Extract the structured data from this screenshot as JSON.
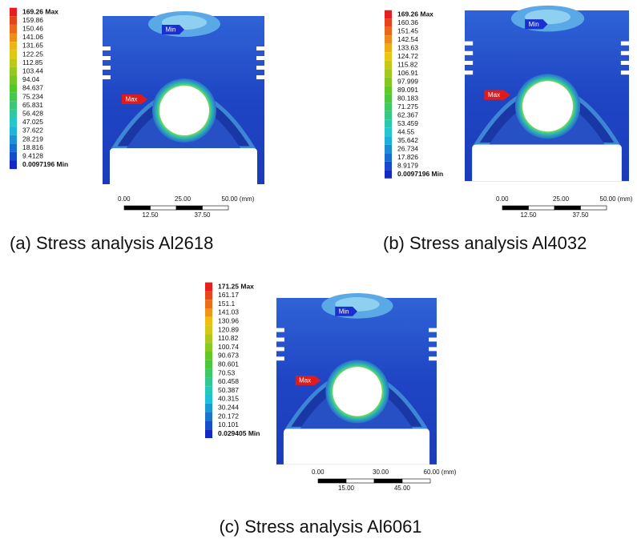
{
  "panels": [
    {
      "legend": [
        "169.26 Max",
        "159.86",
        "150.46",
        "141.06",
        "131.65",
        "122.25",
        "112.85",
        "103.44",
        "94.04",
        "84.637",
        "75.234",
        "65.831",
        "56.428",
        "47.025",
        "37.622",
        "28.219",
        "18.816",
        "9.4128",
        "0.0097196 Min"
      ],
      "min_tag": "Min",
      "max_tag": "Max",
      "scale": {
        "top": [
          "0.00",
          "25.00",
          "50.00 (mm)"
        ],
        "bottom": [
          "12.50",
          "37.50"
        ]
      },
      "caption": "(a) Stress analysis Al2618"
    },
    {
      "legend": [
        "169.26 Max",
        "160.36",
        "151.45",
        "142.54",
        "133.63",
        "124.72",
        "115.82",
        "106.91",
        "97.999",
        "89.091",
        "80.183",
        "71.275",
        "62.367",
        "53.459",
        "44.55",
        "35.642",
        "26.734",
        "17.826",
        "8.9179",
        "0.0097196 Min"
      ],
      "min_tag": "Min",
      "max_tag": "Max",
      "scale": {
        "top": [
          "0.00",
          "25.00",
          "50.00 (mm)"
        ],
        "bottom": [
          "12.50",
          "37.50"
        ]
      },
      "caption": "(b) Stress analysis Al4032"
    },
    {
      "legend": [
        "171.25 Max",
        "161.17",
        "151.1",
        "141.03",
        "130.96",
        "120.89",
        "110.82",
        "100.74",
        "90.673",
        "80.601",
        "70.53",
        "60.458",
        "50.387",
        "40.315",
        "30.244",
        "20.172",
        "10.101",
        "0.029405 Min"
      ],
      "min_tag": "Min",
      "max_tag": "Max",
      "scale": {
        "top": [
          "0.00",
          "30.00",
          "60.00 (mm)"
        ],
        "bottom": [
          "15.00",
          "45.00"
        ]
      },
      "caption": "(c) Stress analysis Al6061"
    }
  ]
}
